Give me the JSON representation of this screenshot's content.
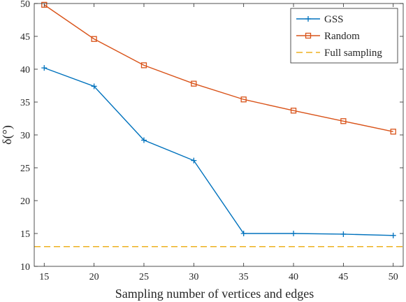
{
  "chart_data": {
    "type": "line",
    "xlabel": "Sampling number of vertices and edges",
    "ylabel": "δ(°)",
    "xlim": [
      14,
      51
    ],
    "ylim": [
      10,
      50
    ],
    "x_ticks": [
      15,
      20,
      25,
      30,
      35,
      40,
      45,
      50
    ],
    "y_ticks": [
      10,
      15,
      20,
      25,
      30,
      35,
      40,
      45,
      50
    ],
    "x_tick_labels": [
      "15",
      "20",
      "25",
      "30",
      "35",
      "40",
      "45",
      "50"
    ],
    "y_tick_labels": [
      "10",
      "15",
      "20",
      "25",
      "30",
      "35",
      "40",
      "45",
      "50"
    ],
    "grid": false,
    "legend_position": "top-right",
    "x": [
      15,
      20,
      25,
      30,
      35,
      40,
      45,
      50
    ],
    "series": [
      {
        "name": "GSS",
        "color": "#0072BD",
        "marker": "plus",
        "style": "solid",
        "values": [
          40.2,
          37.4,
          29.2,
          26.1,
          15.0,
          15.0,
          14.9,
          14.7
        ]
      },
      {
        "name": "Random",
        "color": "#D95319",
        "marker": "square",
        "style": "solid",
        "values": [
          49.8,
          44.6,
          40.6,
          37.8,
          35.4,
          33.7,
          32.1,
          30.5
        ]
      },
      {
        "name": "Full sampling",
        "color": "#EDB120",
        "marker": "none",
        "style": "dashed",
        "constant": 13.0
      }
    ]
  }
}
